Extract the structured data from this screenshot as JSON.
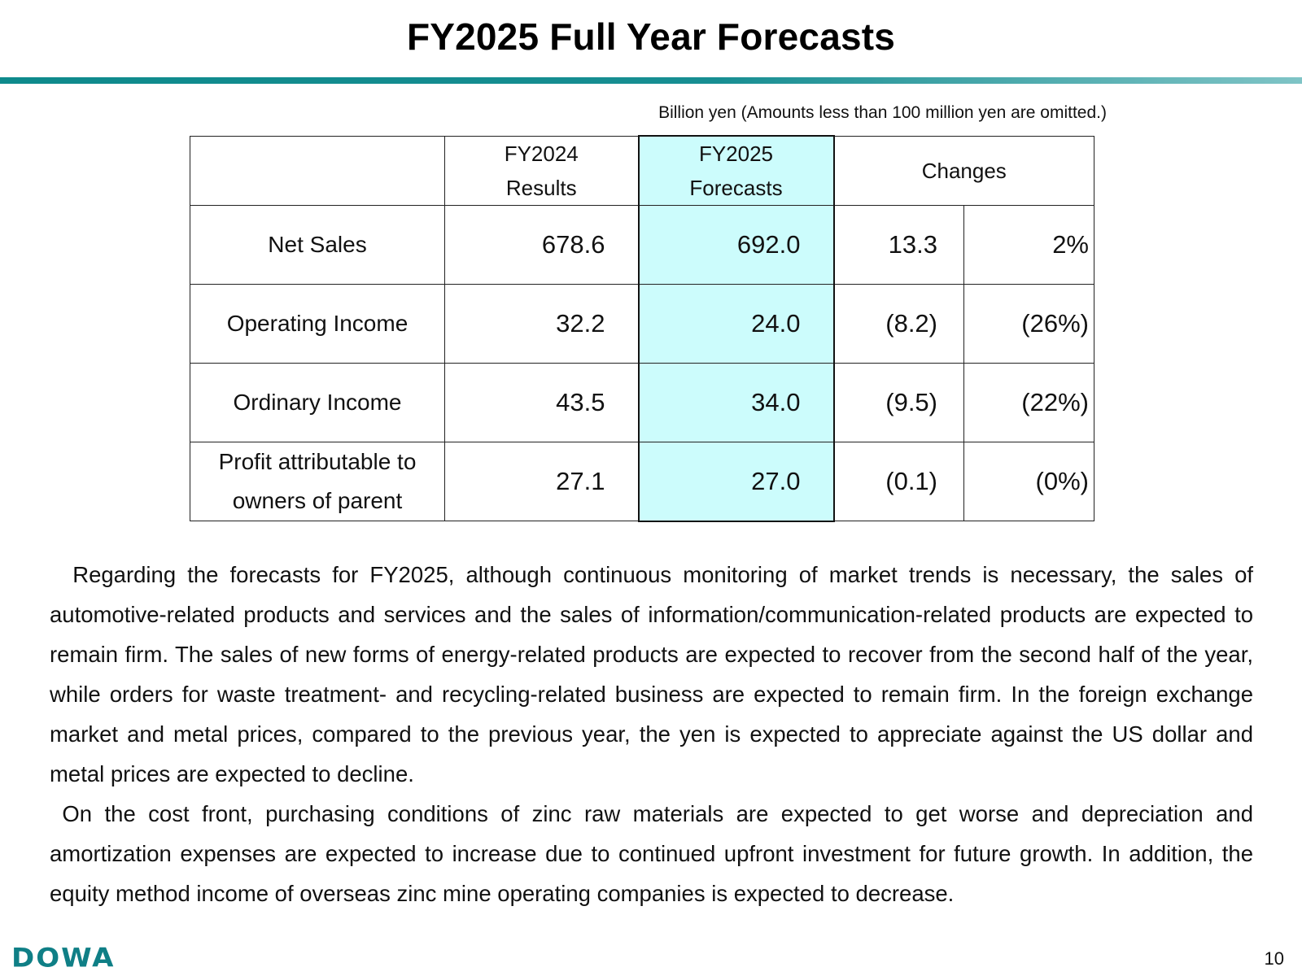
{
  "title": "FY2025 Full Year Forecasts",
  "unit_note": "Billion yen (Amounts less than 100 million yen are omitted.)",
  "table": {
    "headers": {
      "fy2024_line1": "FY2024",
      "fy2024_line2": "Results",
      "fy2025_line1": "FY2025",
      "fy2025_line2": "Forecasts",
      "changes": "Changes"
    },
    "rows": [
      {
        "label": "Net Sales",
        "label_line2": "",
        "fy2024": "678.6",
        "fy2025": "692.0",
        "change": "13.3",
        "change_pct": "2%"
      },
      {
        "label": "Operating Income",
        "label_line2": "",
        "fy2024": "32.2",
        "fy2025": "24.0",
        "change": "(8.2)",
        "change_pct": "(26%)"
      },
      {
        "label": "Ordinary Income",
        "label_line2": "",
        "fy2024": "43.5",
        "fy2025": "34.0",
        "change": "(9.5)",
        "change_pct": "(22%)"
      },
      {
        "label": "Profit attributable to",
        "label_line2": "owners of parent",
        "fy2024": "27.1",
        "fy2025": "27.0",
        "change": "(0.1)",
        "change_pct": "(0%)"
      }
    ],
    "highlight_color": "#ccfcfc"
  },
  "paragraphs": [
    "  Regarding the forecasts for FY2025, although continuous monitoring of market trends is necessary, the sales of automotive-related products and services and the sales of information/communication-related products are expected to remain firm. The sales of new forms of energy-related products are expected to recover from the second half of the year, while orders for waste treatment- and recycling-related business are expected to remain firm. In the foreign exchange market and metal prices, compared to the previous year, the yen is expected to appreciate against the US dollar and metal prices are expected to decline.",
    " On the cost front, purchasing conditions of zinc raw materials are expected to get worse and depreciation and amortization expenses are expected to increase due to continued upfront investment for future growth. In addition, the equity method income of overseas zinc mine operating companies is expected to decrease."
  ],
  "footer": {
    "logo": "DOWA",
    "page_number": "10"
  },
  "colors": {
    "accent": "#0e8a8c",
    "logo": "#0f7f86"
  }
}
